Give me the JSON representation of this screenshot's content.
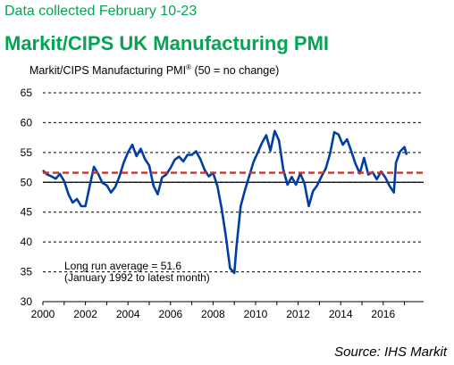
{
  "subtitle": "Data collected February 10-23",
  "title": "Markit/CIPS UK Manufacturing PMI",
  "ylabel_main": "Markit/CIPS Manufacturing PMI",
  "ylabel_mark": "®",
  "ylabel_note": " (50 = no change)",
  "source": "Source: IHS Markit",
  "colors": {
    "title": "#00a650",
    "line": "#003da5",
    "average": "#c0392b"
  },
  "chart_data": {
    "type": "line",
    "title": "Markit/CIPS UK Manufacturing PMI",
    "ylabel": "Markit/CIPS Manufacturing PMI® (50 = no change)",
    "xlabel": "",
    "xlim": [
      2000,
      2017.9
    ],
    "ylim": [
      30,
      65
    ],
    "yticks": [
      30,
      35,
      40,
      45,
      50,
      55,
      60,
      65
    ],
    "xticks": [
      2000,
      2002,
      2004,
      2006,
      2008,
      2010,
      2012,
      2014,
      2016
    ],
    "grid": "horizontal dashed",
    "annotation_lines": [
      "Long run average = 51.6",
      "(January 1992 to latest month)"
    ],
    "reference_lines": [
      {
        "label": "Long run average",
        "y": 51.6,
        "style": "dashed red"
      },
      {
        "label": "no change",
        "y": 50,
        "style": "solid black"
      }
    ],
    "series": [
      {
        "x": [
          2000.0,
          2000.2,
          2000.4,
          2000.6,
          2000.8,
          2001.0,
          2001.2,
          2001.4,
          2001.6,
          2001.8,
          2002.0,
          2002.2,
          2002.4,
          2002.6,
          2002.8,
          2003.0,
          2003.2,
          2003.4,
          2003.6,
          2003.8,
          2004.0,
          2004.2,
          2004.4,
          2004.6,
          2004.8,
          2005.0,
          2005.2,
          2005.4,
          2005.6,
          2005.8,
          2006.0,
          2006.2,
          2006.4,
          2006.6,
          2006.8,
          2007.0,
          2007.2,
          2007.4,
          2007.6,
          2007.8,
          2008.0,
          2008.2,
          2008.4,
          2008.6,
          2008.8,
          2009.0,
          2009.1,
          2009.3,
          2009.5,
          2009.7,
          2009.9,
          2010.1,
          2010.3,
          2010.5,
          2010.7,
          2010.9,
          2011.1,
          2011.3,
          2011.5,
          2011.7,
          2011.9,
          2012.1,
          2012.3,
          2012.5,
          2012.7,
          2012.9,
          2013.1,
          2013.3,
          2013.5,
          2013.7,
          2013.9,
          2014.1,
          2014.3,
          2014.5,
          2014.7,
          2014.9,
          2015.1,
          2015.3,
          2015.5,
          2015.7,
          2015.9,
          2016.1,
          2016.3,
          2016.5,
          2016.6,
          2016.8,
          2017.0,
          2017.1
        ],
        "y": [
          52.0,
          51.3,
          51.0,
          50.6,
          51.4,
          50.2,
          48.0,
          46.6,
          47.2,
          46.0,
          46.0,
          49.4,
          52.6,
          51.4,
          49.9,
          49.5,
          48.3,
          49.2,
          51.0,
          53.3,
          55.0,
          56.3,
          54.4,
          55.6,
          53.9,
          52.8,
          49.4,
          48.0,
          50.8,
          51.3,
          52.4,
          53.8,
          54.3,
          53.5,
          54.6,
          54.6,
          55.2,
          53.9,
          52.1,
          51.0,
          51.6,
          49.4,
          45.7,
          41.0,
          35.6,
          34.8,
          39.2,
          46.0,
          48.7,
          51.0,
          53.4,
          55.0,
          56.6,
          57.9,
          55.3,
          58.6,
          57.0,
          52.2,
          49.6,
          50.9,
          49.6,
          51.5,
          49.8,
          46.0,
          48.5,
          49.5,
          51.0,
          52.3,
          54.8,
          58.4,
          58.0,
          56.3,
          57.2,
          55.2,
          53.1,
          51.5,
          54.1,
          51.3,
          51.7,
          50.5,
          51.8,
          50.8,
          49.4,
          48.3,
          53.3,
          55.2,
          55.9,
          54.6
        ]
      }
    ]
  }
}
